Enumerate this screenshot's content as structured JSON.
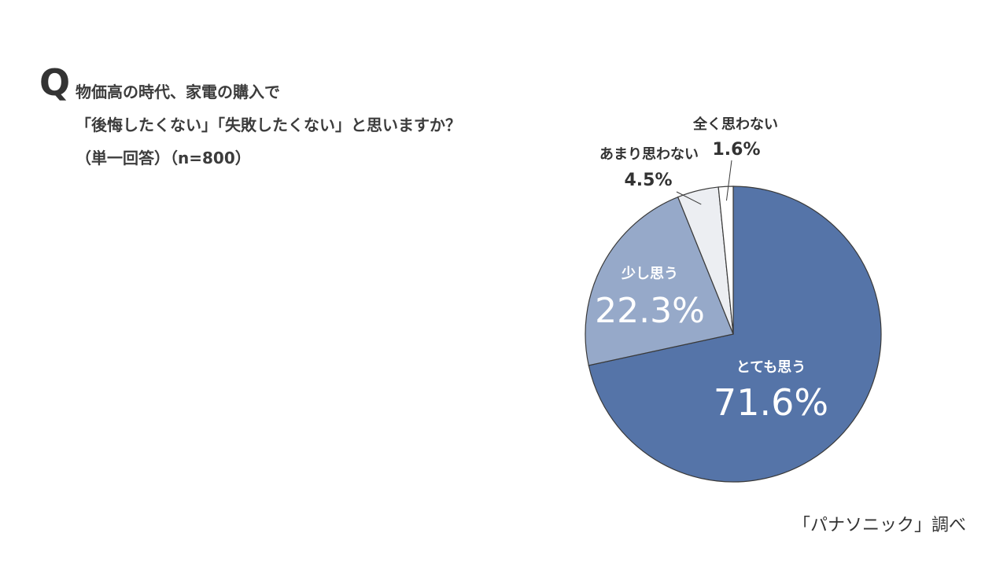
{
  "question": {
    "mark": "Q",
    "lines": [
      "物価高の時代、家電の購入で",
      "「後悔したくない」「失敗したくない」と思いますか？",
      "（単一回答）（n=800）"
    ]
  },
  "source": "「パナソニック」調べ",
  "colors": {
    "slice_1": "#5574a8",
    "slice_2": "#96a9c9",
    "slice_3": "#eceef2",
    "slice_4": "#ffffff",
    "outline": "#3a3a3a",
    "label_light": "#ffffff",
    "label_dark": "#333333"
  },
  "chart_data": {
    "type": "pie",
    "title": "",
    "slices": [
      {
        "label": "とても思う",
        "value": 71.6,
        "display": "71.6%"
      },
      {
        "label": "少し思う",
        "value": 22.3,
        "display": "22.3%"
      },
      {
        "label": "あまり思わない",
        "value": 4.5,
        "display": "4.5%"
      },
      {
        "label": "全く思わない",
        "value": 1.6,
        "display": "1.6%"
      }
    ]
  }
}
